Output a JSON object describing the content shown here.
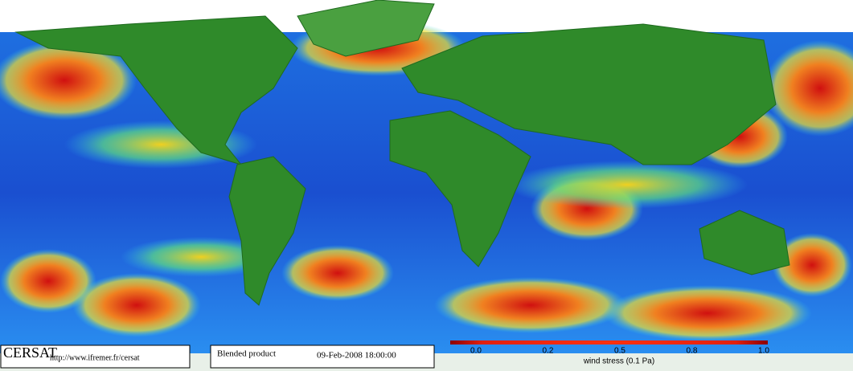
{
  "footer": {
    "logo": "CERSAT",
    "url": "http://www.ifremer.fr/cersat",
    "product": "Blended product",
    "date": "09-Feb-2008 18:00:00"
  },
  "colorbar": {
    "ticks": [
      "0.0",
      "0.2",
      "0.5",
      "0.8",
      "1.0"
    ],
    "label": "wind stress (0.1 Pa)"
  }
}
